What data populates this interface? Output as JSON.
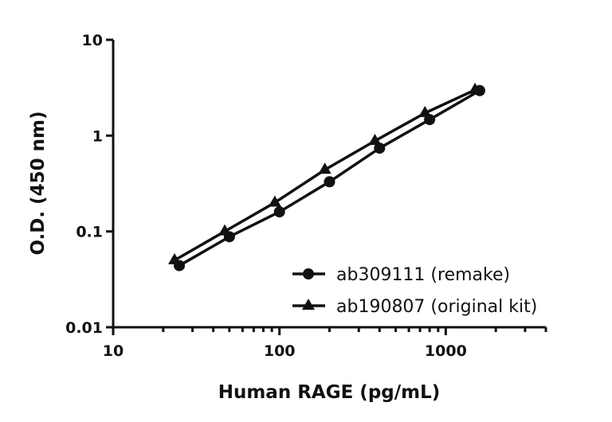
{
  "chart_data": {
    "type": "line",
    "title": "",
    "xlabel": "Human RAGE (pg/mL)",
    "ylabel": "O.D. (450 nm)",
    "xscale": "log",
    "yscale": "log",
    "xlim": [
      10,
      4000
    ],
    "ylim": [
      0.01,
      10
    ],
    "x_ticks": [
      10,
      100,
      1000
    ],
    "x_tick_labels": [
      "10",
      "100",
      "1000"
    ],
    "y_ticks": [
      0.01,
      0.1,
      1,
      10
    ],
    "y_tick_labels": [
      "0.01",
      "0.1",
      "1",
      "10"
    ],
    "grid": false,
    "legend": "bottom-right",
    "color": "#111111",
    "series": [
      {
        "name": "ab309111 (remake)",
        "marker": "circle",
        "x": [
          25,
          50,
          100,
          200,
          400,
          800,
          1600
        ],
        "y": [
          0.044,
          0.088,
          0.16,
          0.33,
          0.74,
          1.47,
          2.95
        ]
      },
      {
        "name": "ab190807 (original kit)",
        "marker": "triangle",
        "x": [
          23.4,
          46.9,
          93.8,
          187.5,
          375,
          750,
          1500
        ],
        "y": [
          0.05,
          0.1,
          0.2,
          0.44,
          0.88,
          1.72,
          3.0
        ]
      }
    ]
  }
}
